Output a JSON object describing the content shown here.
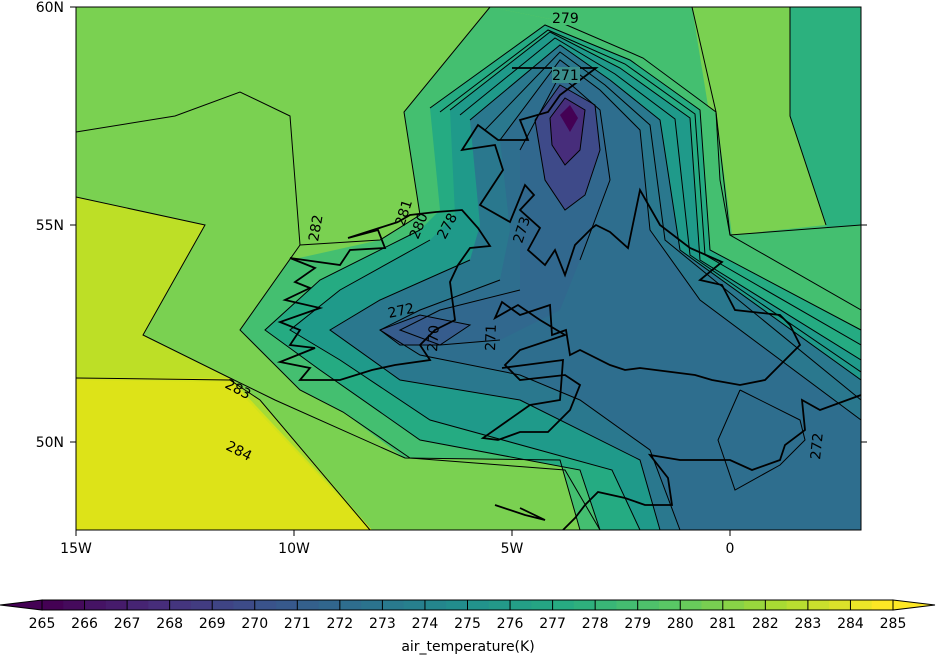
{
  "map": {
    "region": "British Isles",
    "projection": "PlateCarree",
    "x_ticks": [
      "15W",
      "10W",
      "5W",
      "0"
    ],
    "y_ticks": [
      "60N",
      "55N",
      "50N"
    ]
  },
  "colorbar": {
    "label": "air_temperature(K)",
    "ticks": [
      "265",
      "266",
      "267",
      "268",
      "269",
      "270",
      "271",
      "272",
      "273",
      "274",
      "275",
      "276",
      "277",
      "278",
      "279",
      "280",
      "281",
      "282",
      "283",
      "284",
      "285"
    ],
    "colormap": "viridis",
    "extend": "both"
  },
  "contour_labels": [
    {
      "text": "279"
    },
    {
      "text": "271"
    },
    {
      "text": "282"
    },
    {
      "text": "281"
    },
    {
      "text": "280"
    },
    {
      "text": "278"
    },
    {
      "text": "273"
    },
    {
      "text": "272"
    },
    {
      "text": "270"
    },
    {
      "text": "271"
    },
    {
      "text": "283"
    },
    {
      "text": "284"
    },
    {
      "text": "272"
    }
  ],
  "colors": {
    "c265": "#440154",
    "c267": "#482475",
    "c269": "#414487",
    "c271": "#355f8d",
    "c273": "#2a788e",
    "c275": "#21918c",
    "c277": "#22a884",
    "c279": "#44bf70",
    "c281": "#7ad151",
    "c283": "#bddf26",
    "c285": "#fde725"
  }
}
